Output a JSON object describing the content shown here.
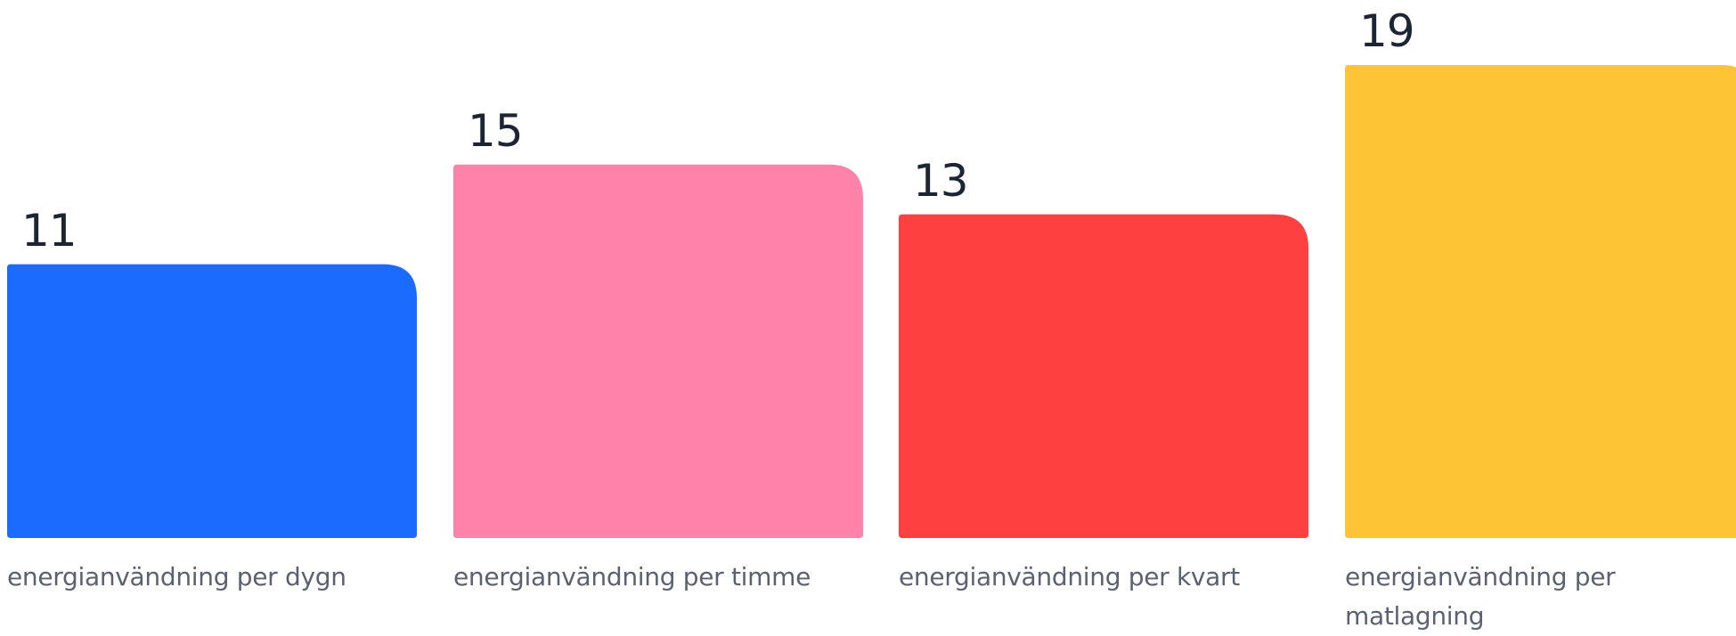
{
  "chart_data": {
    "type": "bar",
    "categories": [
      "energianvändning per dygn",
      "energianvändning per timme",
      "energianvändning per kvart",
      "energianvändning per matlagning"
    ],
    "values": [
      11,
      15,
      13,
      19
    ],
    "value_labels": [
      "11",
      "15",
      "13",
      "19"
    ],
    "colors": [
      "#1c6bff",
      "#ff82ab",
      "#ff4040",
      "#fdc436"
    ],
    "ylim": [
      0,
      19
    ]
  }
}
